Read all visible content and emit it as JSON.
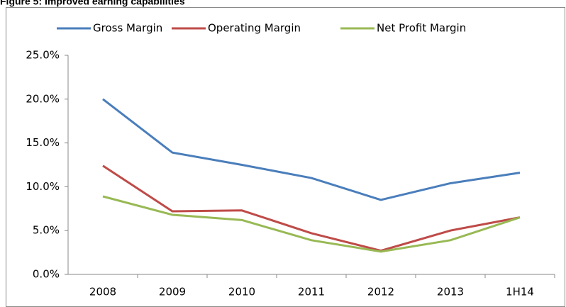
{
  "chart_data": {
    "type": "line",
    "title": "Figure 5: Improved earning capabilities",
    "categories": [
      "2008",
      "2009",
      "2010",
      "2011",
      "2012",
      "2013",
      "1H14"
    ],
    "series": [
      {
        "name": "Gross Margin",
        "color": "#4a7ebb",
        "values": [
          20.0,
          13.9,
          12.5,
          11.0,
          8.5,
          10.4,
          11.6
        ]
      },
      {
        "name": "Operating Margin",
        "color": "#be4b48",
        "values": [
          12.4,
          7.2,
          7.3,
          4.7,
          2.7,
          5.0,
          6.5
        ]
      },
      {
        "name": "Net Profit Margin",
        "color": "#98b954",
        "values": [
          8.9,
          6.8,
          6.2,
          3.9,
          2.6,
          3.9,
          6.5
        ]
      }
    ],
    "ylim": [
      0,
      25
    ],
    "yticks": [
      {
        "value": 0,
        "label": "0.0%"
      },
      {
        "value": 5,
        "label": "5.0%"
      },
      {
        "value": 10,
        "label": "10.0%"
      },
      {
        "value": 15,
        "label": "15.0%"
      },
      {
        "value": 20,
        "label": "20.0%"
      },
      {
        "value": 25,
        "label": "25.0%"
      }
    ],
    "grid": false,
    "legend": "top"
  }
}
